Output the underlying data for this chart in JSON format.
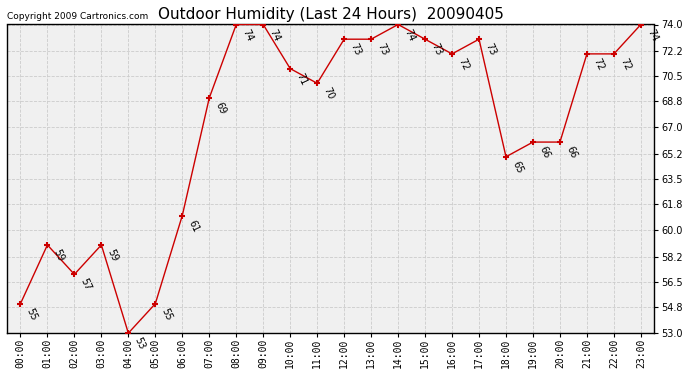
{
  "title": "Outdoor Humidity (Last 24 Hours)  20090405",
  "copyright": "Copyright 2009 Cartronics.com",
  "hours": [
    "00:00",
    "01:00",
    "02:00",
    "03:00",
    "04:00",
    "05:00",
    "06:00",
    "07:00",
    "08:00",
    "09:00",
    "10:00",
    "11:00",
    "12:00",
    "13:00",
    "14:00",
    "15:00",
    "16:00",
    "17:00",
    "18:00",
    "19:00",
    "20:00",
    "21:00",
    "22:00",
    "23:00"
  ],
  "values": [
    55,
    59,
    57,
    59,
    53,
    55,
    61,
    69,
    74,
    74,
    71,
    70,
    73,
    73,
    74,
    73,
    72,
    73,
    65,
    66,
    66,
    72,
    72,
    74
  ],
  "ylim_min": 53.0,
  "ylim_max": 74.0,
  "yticks": [
    53.0,
    54.8,
    56.5,
    58.2,
    60.0,
    61.8,
    63.5,
    65.2,
    67.0,
    68.8,
    70.5,
    72.2,
    74.0
  ],
  "ytick_labels": [
    "53.0",
    "54.8",
    "56.5",
    "58.2",
    "60.0",
    "61.8",
    "63.5",
    "65.2",
    "67.0",
    "68.8",
    "70.5",
    "72.2",
    "74.0"
  ],
  "line_color": "#cc0000",
  "marker_color": "#cc0000",
  "bg_color": "white",
  "plot_bg_color": "#f0f0f0",
  "grid_color": "#cccccc",
  "title_fontsize": 11,
  "copyright_fontsize": 6.5,
  "tick_fontsize": 7,
  "label_fontsize": 7
}
